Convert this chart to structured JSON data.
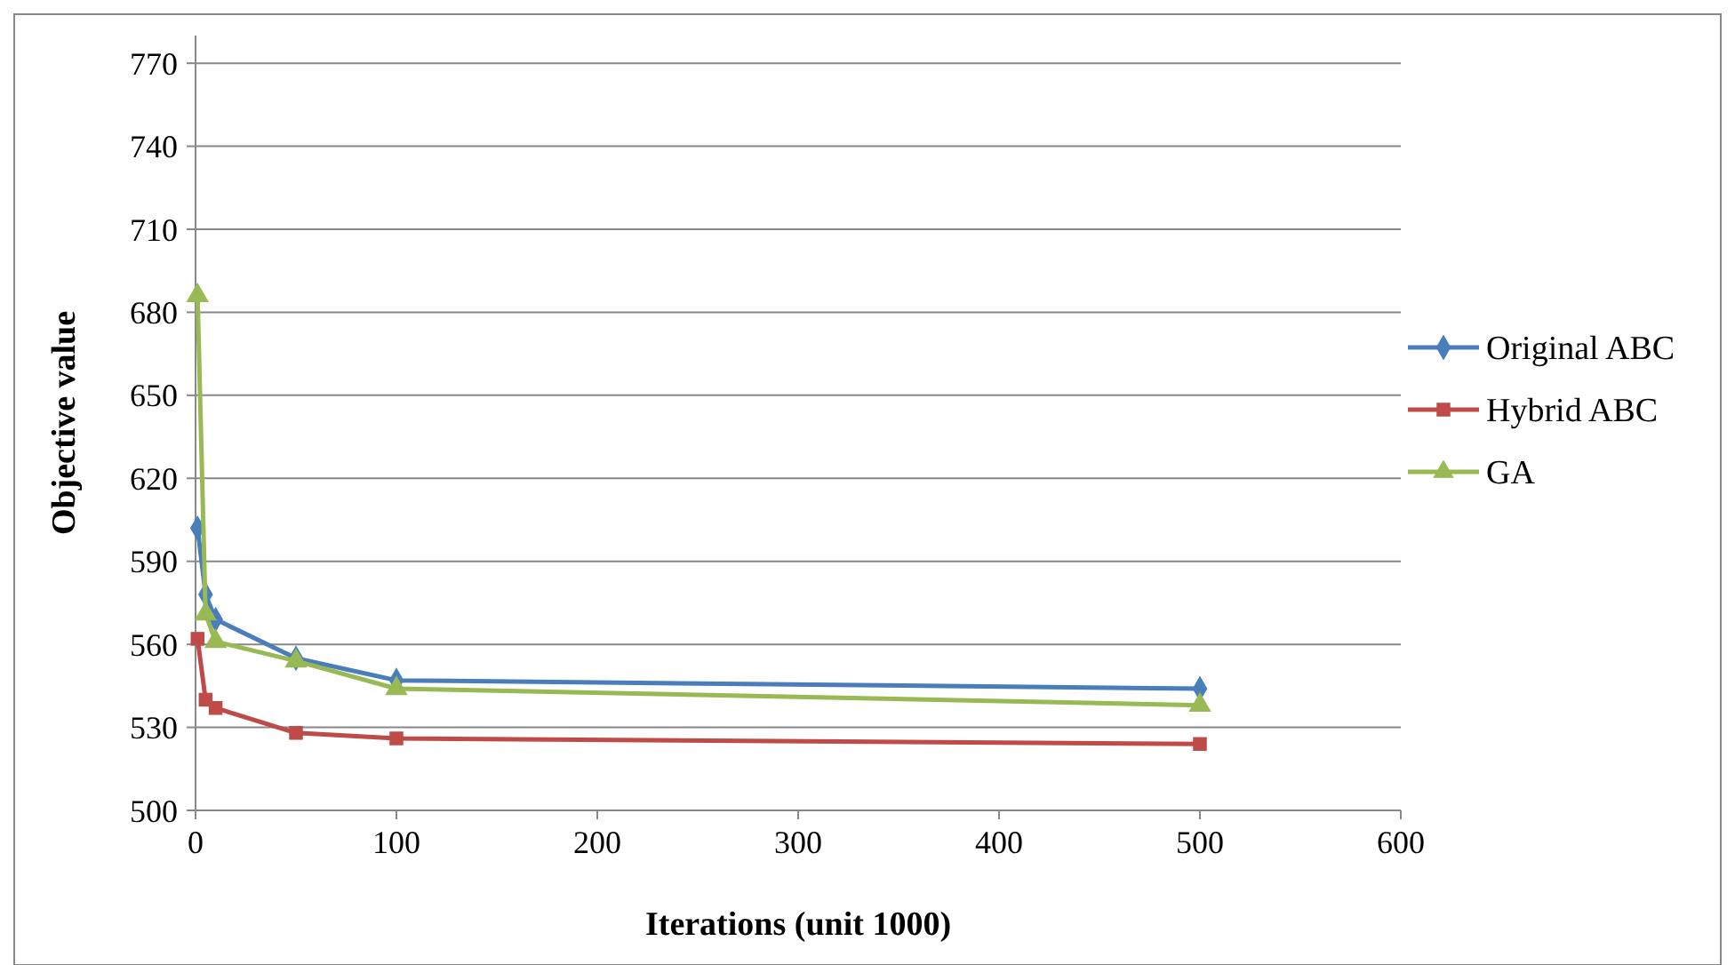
{
  "chart_data": {
    "type": "line",
    "xlabel": "Iterations (unit 1000)",
    "ylabel": "Objective value",
    "x": [
      1,
      5,
      10,
      50,
      100,
      500
    ],
    "series": [
      {
        "name": "Original ABC",
        "color": "#4a7ebb",
        "marker": "diamond",
        "values": [
          602,
          578,
          569,
          555,
          547,
          544
        ]
      },
      {
        "name": "Hybrid ABC",
        "color": "#be4b48",
        "marker": "square",
        "values": [
          562,
          540,
          537,
          528,
          526,
          524
        ]
      },
      {
        "name": "GA",
        "color": "#98b954",
        "marker": "triangle",
        "values": [
          686,
          571,
          561,
          554,
          544,
          538
        ]
      }
    ],
    "xlim": [
      0,
      600
    ],
    "xticks": [
      0,
      100,
      200,
      300,
      400,
      500,
      600
    ],
    "ylim": [
      500,
      780
    ],
    "yticks": [
      500,
      530,
      560,
      590,
      620,
      650,
      680,
      710,
      740,
      770
    ],
    "grid": "y",
    "legend": "right"
  }
}
